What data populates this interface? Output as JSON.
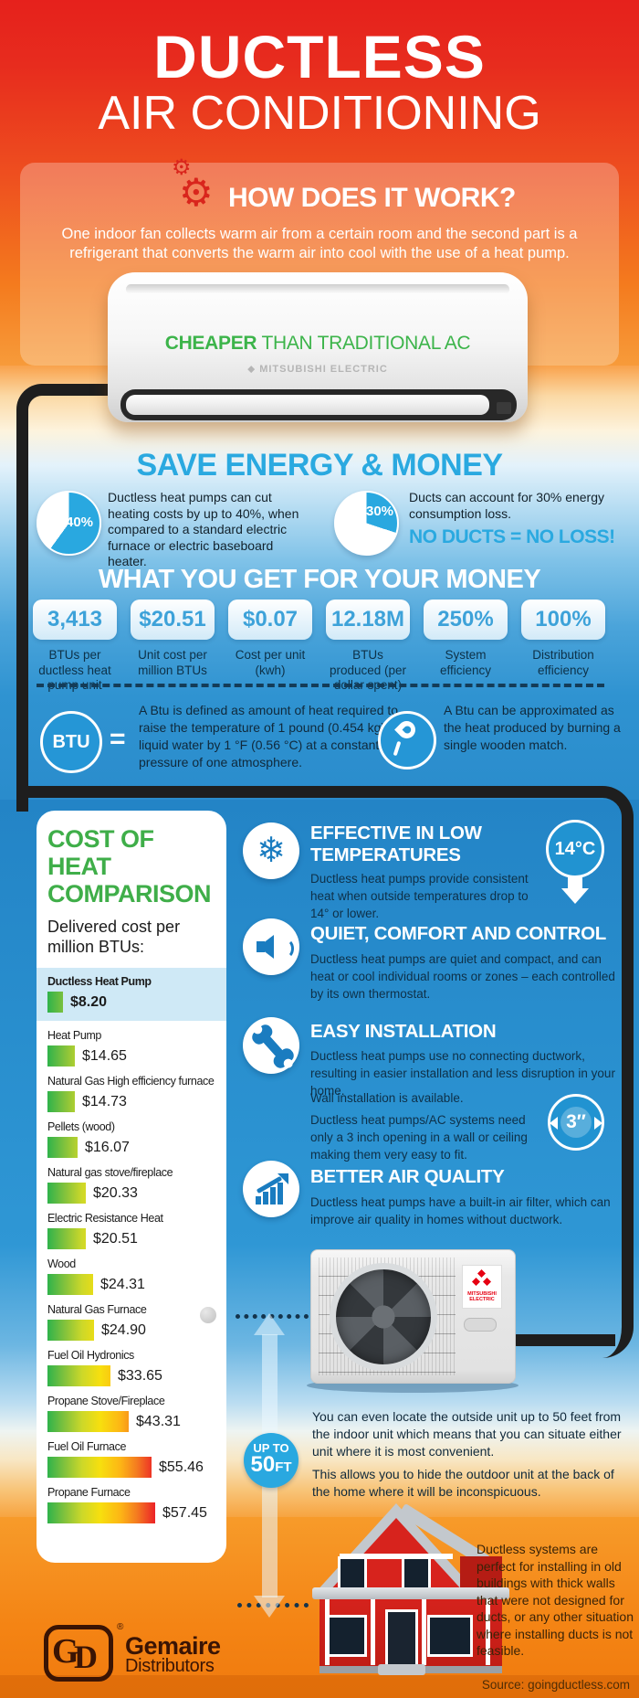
{
  "header": {
    "title_line1": "DUCTLESS",
    "title_line2": "AIR CONDITIONING"
  },
  "how": {
    "title": "HOW DOES IT WORK?",
    "body": "One indoor fan collects warm air from a certain room and the second part is a refrigerant that converts the warm air into cool with the use of a heat pump."
  },
  "indoor_unit": {
    "claim_strong": "CHEAPER",
    "claim_rest": " THAN TRADITIONAL AC",
    "brand": "MITSUBISHI ELECTRIC"
  },
  "save": {
    "title": "SAVE ENERGY & MONEY",
    "pie1": {
      "pct": "40%",
      "text": "Ductless heat pumps can cut heating costs by up to 40%, when compared to a standard electric furnace or electric baseboard heater."
    },
    "pie2": {
      "pct": "30%",
      "text": "Ducts can account for 30% energy consumption loss.",
      "tagline": "NO DUCTS = NO LOSS!"
    }
  },
  "money": {
    "title": "WHAT YOU GET FOR YOUR MONEY",
    "stats": [
      {
        "value": "3,413",
        "label": "BTUs per ductless heat pump unit"
      },
      {
        "value": "$20.51",
        "label": "Unit cost per million BTUs"
      },
      {
        "value": "$0.07",
        "label": "Cost per unit (kwh)"
      },
      {
        "value": "12.18M",
        "label": "BTUs produced (per dollar spent)"
      },
      {
        "value": "250%",
        "label": "System efficiency"
      },
      {
        "value": "100%",
        "label": "Distribution efficiency"
      }
    ]
  },
  "btu": {
    "abbr": "BTU",
    "equals": "=",
    "definition": "A Btu is defined as amount of heat required to raise the temperature of 1 pound (0.454 kg) of liquid water by 1 °F (0.56 °C) at a constant pressure of one atmosphere.",
    "match_text": "A Btu can be approximated as the heat produced by burning a single wooden match."
  },
  "chart_data": {
    "type": "bar",
    "orientation": "horizontal",
    "title": "COST OF HEAT COMPARISON",
    "subtitle": "Delivered cost per million BTUs:",
    "categories": [
      "Ductless Heat Pump",
      "Heat Pump",
      "Natural Gas High efficiency furnace",
      "Pellets (wood)",
      "Natural gas stove/fireplace",
      "Electric Resistance Heat",
      "Wood",
      "Natural Gas Furnace",
      "Fuel Oil Hydronics",
      "Propane Stove/Fireplace",
      "Fuel Oil Furnace",
      "Propane Furnace"
    ],
    "values": [
      8.2,
      14.65,
      14.73,
      16.07,
      20.33,
      20.51,
      24.31,
      24.9,
      33.65,
      43.31,
      55.46,
      57.45
    ],
    "value_labels": [
      "$8.20",
      "$14.65",
      "$14.73",
      "$16.07",
      "$20.33",
      "$20.51",
      "$24.31",
      "$24.90",
      "$33.65",
      "$43.31",
      "$55.46",
      "$57.45"
    ],
    "highlight_category": "Ductless Heat Pump",
    "xlim": [
      0,
      60
    ],
    "bar_color_scale": [
      "#2fb34b",
      "#f7df0e",
      "#f47b20",
      "#ec2227"
    ],
    "legend": false,
    "grid": false
  },
  "features": [
    {
      "title": "EFFECTIVE IN LOW TEMPERATURES",
      "body": "Ductless heat pumps provide consistent heat when outside temperatures drop to 14° or lower.",
      "badge": "14°C"
    },
    {
      "title": "QUIET, COMFORT AND CONTROL",
      "body": "Ductless heat pumps are quiet and compact, and can heat or cool individual rooms or zones – each controlled by its own thermostat."
    },
    {
      "title": "EASY INSTALLATION",
      "body": "Ductless heat pumps use no connecting ductwork, resulting in easier installation and less disruption in your home.",
      "note": "Wall installation is available.",
      "body2": "Ductless heat pumps/AC systems need only a 3 inch opening in a wall or ceiling making them very easy to fit.",
      "badge": "3″"
    },
    {
      "title": "BETTER AIR QUALITY",
      "body": "Ductless heat pumps have a built-in air filter, which can improve air quality in homes without ductwork."
    }
  ],
  "outdoor_unit": {
    "brand_line1": "MITSUBISHI",
    "brand_line2": "ELECTRIC"
  },
  "distance": {
    "badge_top": "UP TO",
    "badge_value": "50",
    "badge_unit": "FT",
    "para1": "You can even locate the outside unit up to 50 feet from the indoor unit which means that you can situate either unit where it is most convenient.",
    "para2": "This allows you to hide the outdoor unit at the back of the home where it will be inconspicuous."
  },
  "old_buildings": {
    "text": "Ductless systems are perfect for installing in old buildings with thick walls that were not designed for ducts, or any other situation where installing ducts is not feasible."
  },
  "footer": {
    "logo_g": "G",
    "logo_d": "D",
    "logo_reg": "®",
    "logo_name": "Gemaire",
    "logo_sub": "Distributors",
    "source": "Source: goingductless.com"
  },
  "colors": {
    "accent_blue": "#29a8e0",
    "accent_green": "#3cb44a",
    "accent_red": "#d9251c",
    "pipe_black": "#1e1e1e"
  }
}
